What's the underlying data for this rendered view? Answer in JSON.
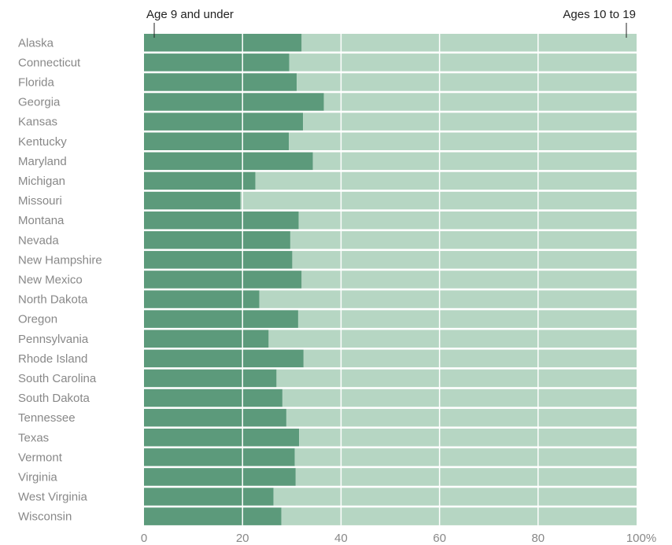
{
  "chart_data": {
    "type": "bar",
    "orientation": "horizontal",
    "stacked": true,
    "categories": [
      "Alaska",
      "Connecticut",
      "Florida",
      "Georgia",
      "Kansas",
      "Kentucky",
      "Maryland",
      "Michigan",
      "Missouri",
      "Montana",
      "Nevada",
      "New Hampshire",
      "New Mexico",
      "North Dakota",
      "Oregon",
      "Pennsylvania",
      "Rhode Island",
      "South Carolina",
      "South Dakota",
      "Tennessee",
      "Texas",
      "Vermont",
      "Virginia",
      "West Virginia",
      "Wisconsin"
    ],
    "series": [
      {
        "name": "Age 9 and under",
        "values": [
          32,
          29.5,
          31,
          36.5,
          32.3,
          29.4,
          34.3,
          22.6,
          19.6,
          31.4,
          29.7,
          30.1,
          32,
          23.4,
          31.3,
          25.3,
          32.4,
          26.9,
          28.1,
          28.9,
          31.5,
          30.6,
          30.8,
          26.3,
          27.9
        ]
      },
      {
        "name": "Ages 10 to 19",
        "values": [
          68,
          70.5,
          69,
          63.5,
          67.7,
          70.6,
          65.7,
          77.4,
          80.4,
          68.6,
          70.3,
          69.9,
          68,
          76.6,
          68.7,
          74.7,
          67.6,
          73.1,
          71.9,
          71.1,
          68.5,
          69.4,
          69.2,
          73.7,
          72.1
        ]
      }
    ],
    "xticks": [
      "0",
      "20",
      "40",
      "60",
      "80",
      "100%"
    ],
    "xtick_values": [
      0,
      20,
      40,
      60,
      80,
      100
    ],
    "xlim": [
      0,
      100
    ],
    "grid": true,
    "legend_placement": "top",
    "title": "",
    "xlabel": "",
    "ylabel": "",
    "colors": {
      "series1": "#5c9a7b",
      "series2": "#b6d6c3",
      "grid": "#ffffff",
      "axis_text": "#888888",
      "legend_text": "#222222"
    }
  }
}
